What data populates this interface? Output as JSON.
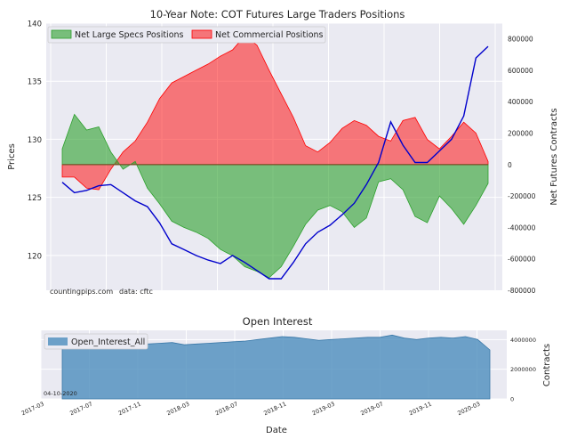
{
  "chart_data": [
    {
      "type": "area",
      "title": "10-Year Note: COT Futures Large Traders Positions",
      "ylabel_left": "Prices",
      "ylabel_right": "Net Futures Contracts",
      "ylim_left": [
        117,
        140
      ],
      "yticks_left": [
        "120",
        "125",
        "130",
        "135",
        "140"
      ],
      "ylim_right": [
        -800000,
        900000
      ],
      "yticks_right": [
        "-800000",
        "-600000",
        "-400000",
        "-200000",
        "0",
        "200000",
        "400000",
        "600000",
        "800000"
      ],
      "legend_position": "upper left",
      "watermark": "countingpips.com",
      "source_note": "data: cftc",
      "x": [
        "2017-05",
        "2017-06",
        "2017-07",
        "2017-08",
        "2017-09",
        "2017-10",
        "2017-11",
        "2017-12",
        "2018-01",
        "2018-02",
        "2018-03",
        "2018-04",
        "2018-05",
        "2018-06",
        "2018-07",
        "2018-08",
        "2018-09",
        "2018-10",
        "2018-11",
        "2018-12",
        "2019-01",
        "2019-02",
        "2019-03",
        "2019-04",
        "2019-05",
        "2019-06",
        "2019-07",
        "2019-08",
        "2019-09",
        "2019-10",
        "2019-11",
        "2019-12",
        "2020-01",
        "2020-02",
        "2020-03",
        "2020-04"
      ],
      "series": [
        {
          "name": "Net Large Specs Positions",
          "color": "#2ca02c",
          "values": [
            100000,
            320000,
            220000,
            240000,
            80000,
            -30000,
            20000,
            -150000,
            -250000,
            -360000,
            -400000,
            -430000,
            -470000,
            -540000,
            -580000,
            -650000,
            -680000,
            -720000,
            -650000,
            -520000,
            -380000,
            -290000,
            -260000,
            -300000,
            -400000,
            -340000,
            -110000,
            -90000,
            -160000,
            -330000,
            -370000,
            -200000,
            -280000,
            -380000,
            -260000,
            -120000
          ]
        },
        {
          "name": "Net Commercial Positions",
          "color": "#ff0000",
          "values": [
            -80000,
            -80000,
            -150000,
            -160000,
            -30000,
            80000,
            150000,
            270000,
            420000,
            520000,
            560000,
            600000,
            640000,
            690000,
            730000,
            820000,
            760000,
            600000,
            450000,
            300000,
            120000,
            80000,
            140000,
            230000,
            280000,
            250000,
            180000,
            150000,
            280000,
            300000,
            160000,
            100000,
            180000,
            270000,
            200000,
            20000
          ]
        },
        {
          "name": "Price",
          "axis": "left",
          "color": "#0000cc",
          "values": [
            126.3,
            125.4,
            125.6,
            126.0,
            126.1,
            125.4,
            124.7,
            124.2,
            122.8,
            121.0,
            120.5,
            120.0,
            119.6,
            119.3,
            120.0,
            119.4,
            118.7,
            118.0,
            118.0,
            119.4,
            121.0,
            122.0,
            122.6,
            123.5,
            124.5,
            126.1,
            128.0,
            131.5,
            129.5,
            128.0,
            128.0,
            129.0,
            130.0,
            132.0,
            137.0,
            138.0
          ]
        }
      ]
    },
    {
      "type": "area",
      "title": "Open Interest",
      "ylabel": "Contracts",
      "xlabel": "Date",
      "ylim": [
        0,
        4500000
      ],
      "yticks": [
        "0",
        "2000000",
        "4000000"
      ],
      "legend_position": "upper left",
      "date_label": "04-10-2020",
      "xtick_labels": [
        "2017-03",
        "2017-07",
        "2017-11",
        "2018-03",
        "2018-07",
        "2018-11",
        "2019-03",
        "2019-07",
        "2019-11",
        "2020-03"
      ],
      "x": [
        "2017-05",
        "2017-06",
        "2017-07",
        "2017-08",
        "2017-09",
        "2017-10",
        "2017-11",
        "2017-12",
        "2018-01",
        "2018-02",
        "2018-03",
        "2018-04",
        "2018-05",
        "2018-06",
        "2018-07",
        "2018-08",
        "2018-09",
        "2018-10",
        "2018-11",
        "2018-12",
        "2019-01",
        "2019-02",
        "2019-03",
        "2019-04",
        "2019-05",
        "2019-06",
        "2019-07",
        "2019-08",
        "2019-09",
        "2019-10",
        "2019-11",
        "2019-12",
        "2020-01",
        "2020-02",
        "2020-03",
        "2020-04"
      ],
      "series": [
        {
          "name": "Open_Interest_All",
          "color": "#4c8dbd",
          "values": [
            3400000,
            3450000,
            3500000,
            3550000,
            3600000,
            3650000,
            3600000,
            3700000,
            3750000,
            3800000,
            3650000,
            3700000,
            3750000,
            3800000,
            3850000,
            3900000,
            4000000,
            4100000,
            4200000,
            4150000,
            4050000,
            3950000,
            4000000,
            4050000,
            4100000,
            4150000,
            4150000,
            4300000,
            4100000,
            4000000,
            4100000,
            4150000,
            4100000,
            4200000,
            4000000,
            3300000
          ]
        }
      ]
    }
  ]
}
